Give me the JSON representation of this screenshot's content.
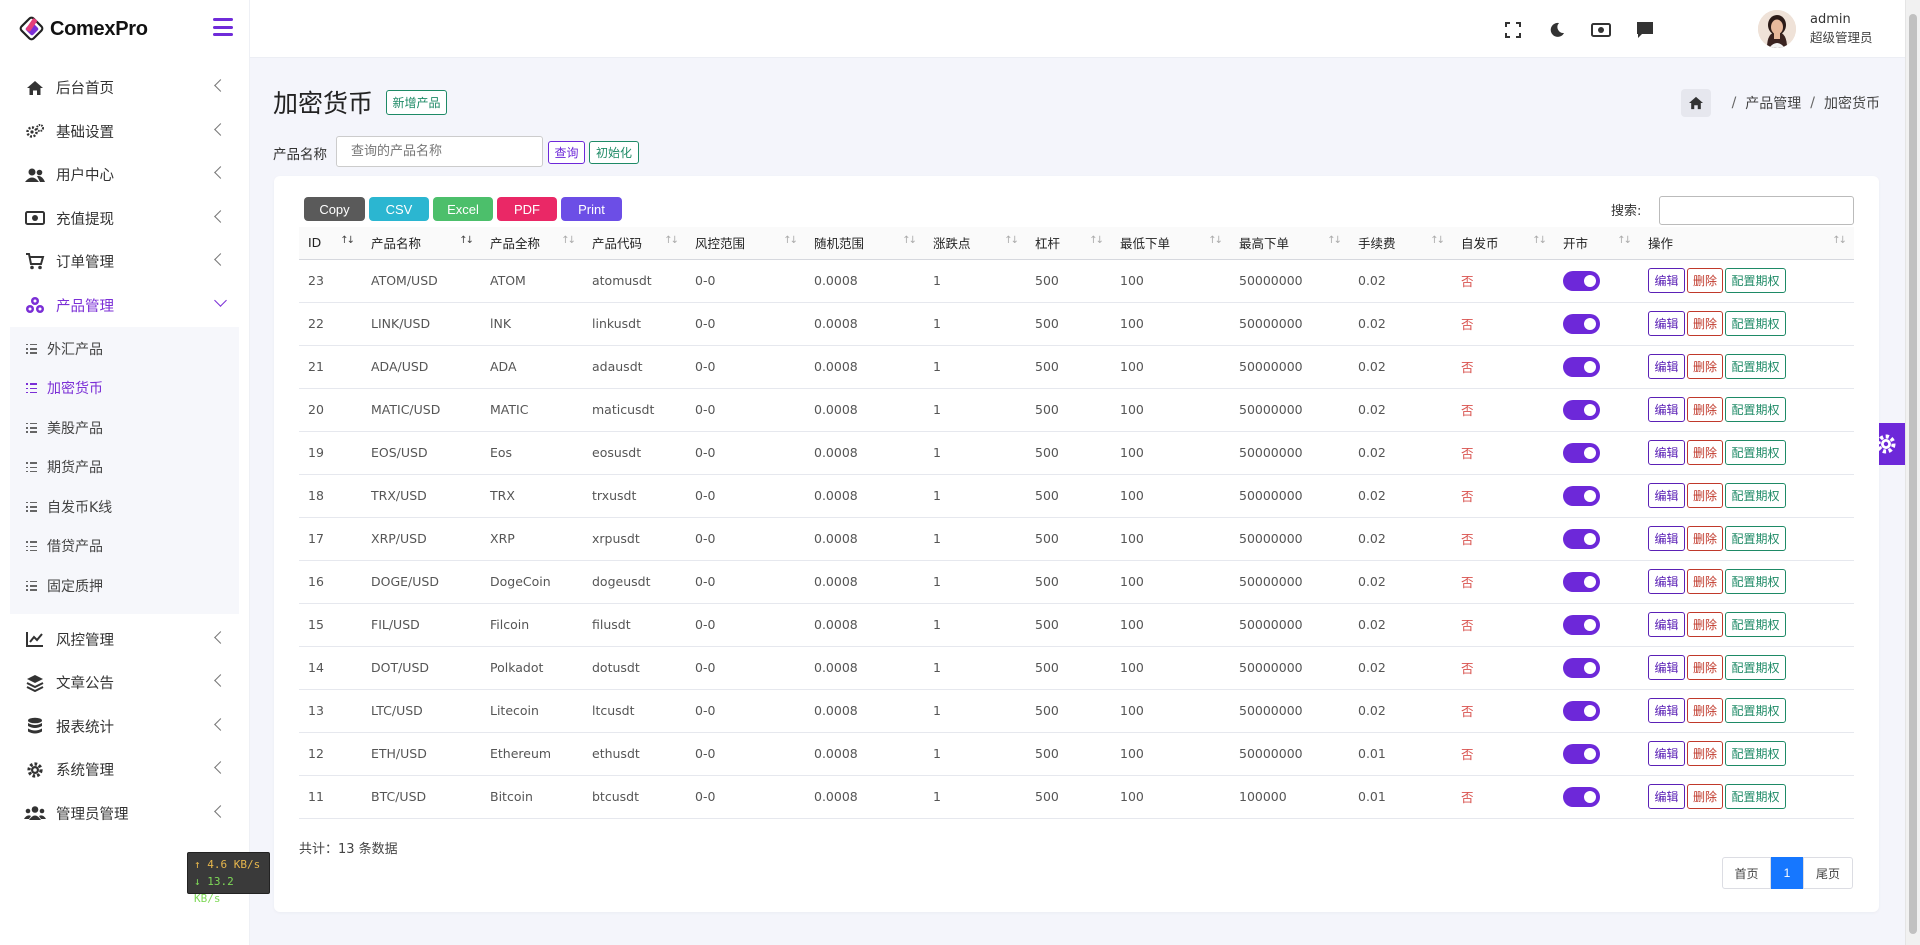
{
  "brand": {
    "name": "ComexPro"
  },
  "sidebar": {
    "items": [
      {
        "label": "后台首页",
        "icon": "home-icon"
      },
      {
        "label": "基础设置",
        "icon": "cogs-icon"
      },
      {
        "label": "用户中心",
        "icon": "users-icon"
      },
      {
        "label": "充值提现",
        "icon": "money-icon"
      },
      {
        "label": "订单管理",
        "icon": "cart-icon"
      },
      {
        "label": "产品管理",
        "icon": "cubes-icon"
      },
      {
        "label": "风控管理",
        "icon": "chart-line-icon"
      },
      {
        "label": "文章公告",
        "icon": "layers-icon"
      },
      {
        "label": "报表统计",
        "icon": "database-icon"
      },
      {
        "label": "系统管理",
        "icon": "gear-icon"
      },
      {
        "label": "管理员管理",
        "icon": "admins-icon"
      }
    ],
    "subitems": [
      {
        "label": "外汇产品"
      },
      {
        "label": "加密货币"
      },
      {
        "label": "美股产品"
      },
      {
        "label": "期货产品"
      },
      {
        "label": "自发币K线"
      },
      {
        "label": "借贷产品"
      },
      {
        "label": "固定质押"
      }
    ]
  },
  "netspeed": {
    "up": "↑ 4.6 KB/s",
    "down": "↓ 13.2 KB/s"
  },
  "header": {
    "username": "admin",
    "role": "超级管理员"
  },
  "page": {
    "title": "加密货币",
    "add_label": "新增产品",
    "breadcrumb": [
      "产品管理",
      "加密货币"
    ]
  },
  "filter": {
    "label": "产品名称",
    "placeholder": "查询的产品名称",
    "query_label": "查询",
    "reset_label": "初始化"
  },
  "exports": [
    "Copy",
    "CSV",
    "Excel",
    "PDF",
    "Print"
  ],
  "search_label": "搜索:",
  "table": {
    "columns": [
      "ID",
      "产品名称",
      "产品全称",
      "产品代码",
      "风控范围",
      "随机范围",
      "涨跌点",
      "杠杆",
      "最低下单",
      "最高下单",
      "手续费",
      "自发币",
      "开市",
      "操作"
    ],
    "rows": [
      [
        "23",
        "ATOM/USD",
        "ATOM",
        "atomusdt",
        "0-0",
        "0.0008",
        "1",
        "500",
        "100",
        "50000000",
        "0.02",
        "否"
      ],
      [
        "22",
        "LINK/USD",
        "lNK",
        "linkusdt",
        "0-0",
        "0.0008",
        "1",
        "500",
        "100",
        "50000000",
        "0.02",
        "否"
      ],
      [
        "21",
        "ADA/USD",
        "ADA",
        "adausdt",
        "0-0",
        "0.0008",
        "1",
        "500",
        "100",
        "50000000",
        "0.02",
        "否"
      ],
      [
        "20",
        "MATIC/USD",
        "MATIC",
        "maticusdt",
        "0-0",
        "0.0008",
        "1",
        "500",
        "100",
        "50000000",
        "0.02",
        "否"
      ],
      [
        "19",
        "EOS/USD",
        "Eos",
        "eosusdt",
        "0-0",
        "0.0008",
        "1",
        "500",
        "100",
        "50000000",
        "0.02",
        "否"
      ],
      [
        "18",
        "TRX/USD",
        "TRX",
        "trxusdt",
        "0-0",
        "0.0008",
        "1",
        "500",
        "100",
        "50000000",
        "0.02",
        "否"
      ],
      [
        "17",
        "XRP/USD",
        "XRP",
        "xrpusdt",
        "0-0",
        "0.0008",
        "1",
        "500",
        "100",
        "50000000",
        "0.02",
        "否"
      ],
      [
        "16",
        "DOGE/USD",
        "DogeCoin",
        "dogeusdt",
        "0-0",
        "0.0008",
        "1",
        "500",
        "100",
        "50000000",
        "0.02",
        "否"
      ],
      [
        "15",
        "FIL/USD",
        "Filcoin",
        "filusdt",
        "0-0",
        "0.0008",
        "1",
        "500",
        "100",
        "50000000",
        "0.02",
        "否"
      ],
      [
        "14",
        "DOT/USD",
        "Polkadot",
        "dotusdt",
        "0-0",
        "0.0008",
        "1",
        "500",
        "100",
        "50000000",
        "0.02",
        "否"
      ],
      [
        "13",
        "LTC/USD",
        "Litecoin",
        "ltcusdt",
        "0-0",
        "0.0008",
        "1",
        "500",
        "100",
        "50000000",
        "0.02",
        "否"
      ],
      [
        "12",
        "ETH/USD",
        "Ethereum",
        "ethusdt",
        "0-0",
        "0.0008",
        "1",
        "500",
        "100",
        "50000000",
        "0.01",
        "否"
      ],
      [
        "11",
        "BTC/USD",
        "Bitcoin",
        "btcusdt",
        "0-0",
        "0.0008",
        "1",
        "500",
        "100",
        "100000",
        "0.01",
        "否"
      ]
    ],
    "actions": [
      "编辑",
      "删除",
      "配置期权"
    ]
  },
  "footer": {
    "total": "共计：13 条数据",
    "first": "首页",
    "current": "1",
    "last": "尾页"
  },
  "colors": {
    "accent": "#6d28d9",
    "green": "#1e8a66",
    "danger": "#c0392b",
    "page_blue": "#1677ff"
  }
}
